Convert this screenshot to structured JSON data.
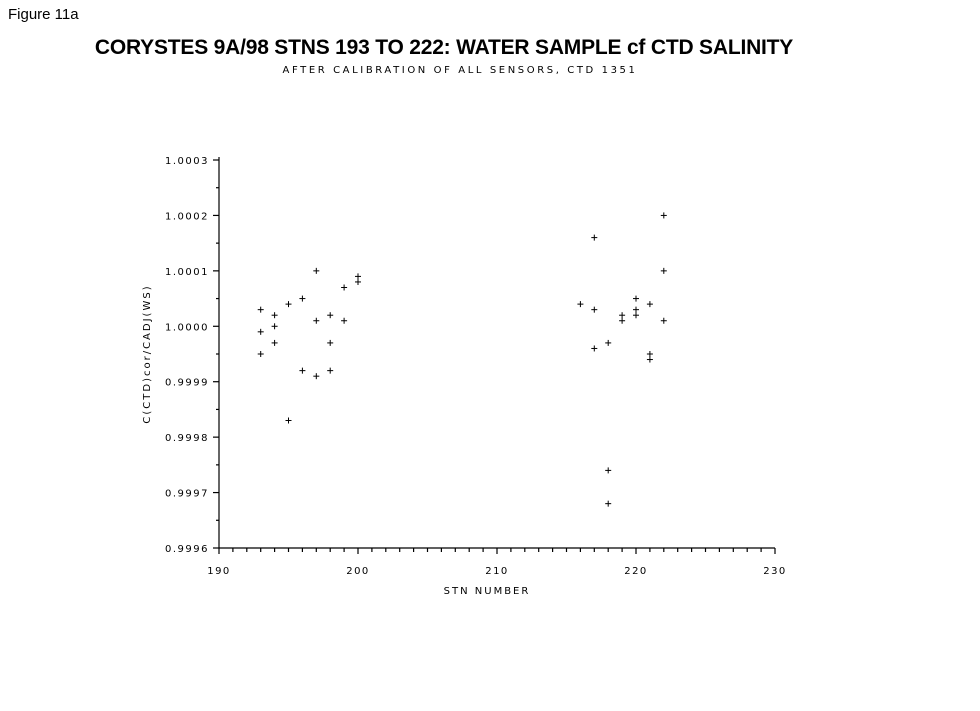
{
  "figure_label": "Figure 11a",
  "chart_data": {
    "type": "scatter",
    "title": "CORYSTES 9A/98 STNS 193 TO 222: WATER SAMPLE cf CTD SALINITY",
    "subtitle": "AFTER CALIBRATION OF ALL SENSORS, CTD 1351",
    "xlabel": "STN NUMBER",
    "ylabel": "C(CTD)cor/CADJ(WS)",
    "xlim": [
      190,
      230
    ],
    "ylim": [
      0.9996,
      1.0003
    ],
    "xticks": [
      "190",
      "200",
      "210",
      "220",
      "230"
    ],
    "yticks": [
      "0.9996",
      "0.9997",
      "0.9998",
      "0.9999",
      "1.0000",
      "1.0001",
      "1.0002",
      "1.0003"
    ],
    "marker": "+",
    "grid": false,
    "points": [
      {
        "x": 193,
        "y": 1.00003
      },
      {
        "x": 193,
        "y": 0.99999
      },
      {
        "x": 193,
        "y": 0.99995
      },
      {
        "x": 194,
        "y": 1.00002
      },
      {
        "x": 194,
        "y": 1.0
      },
      {
        "x": 194,
        "y": 0.99997
      },
      {
        "x": 195,
        "y": 1.00004
      },
      {
        "x": 195,
        "y": 0.99983
      },
      {
        "x": 196,
        "y": 1.00005
      },
      {
        "x": 196,
        "y": 0.99992
      },
      {
        "x": 197,
        "y": 1.0001
      },
      {
        "x": 197,
        "y": 1.00001
      },
      {
        "x": 197,
        "y": 0.99991
      },
      {
        "x": 198,
        "y": 1.00002
      },
      {
        "x": 198,
        "y": 0.99997
      },
      {
        "x": 198,
        "y": 0.99992
      },
      {
        "x": 199,
        "y": 1.00007
      },
      {
        "x": 199,
        "y": 1.00001
      },
      {
        "x": 200,
        "y": 1.00009
      },
      {
        "x": 200,
        "y": 1.00008
      },
      {
        "x": 216,
        "y": 1.00004
      },
      {
        "x": 217,
        "y": 1.00016
      },
      {
        "x": 217,
        "y": 1.00003
      },
      {
        "x": 217,
        "y": 0.99996
      },
      {
        "x": 218,
        "y": 0.99997
      },
      {
        "x": 218,
        "y": 0.99974
      },
      {
        "x": 218,
        "y": 0.99968
      },
      {
        "x": 219,
        "y": 1.00002
      },
      {
        "x": 219,
        "y": 1.00001
      },
      {
        "x": 220,
        "y": 1.00005
      },
      {
        "x": 220,
        "y": 1.00003
      },
      {
        "x": 220,
        "y": 1.00002
      },
      {
        "x": 221,
        "y": 1.00004
      },
      {
        "x": 221,
        "y": 0.99995
      },
      {
        "x": 221,
        "y": 0.99994
      },
      {
        "x": 222,
        "y": 1.0002
      },
      {
        "x": 222,
        "y": 1.0001
      },
      {
        "x": 222,
        "y": 1.00001
      }
    ]
  }
}
